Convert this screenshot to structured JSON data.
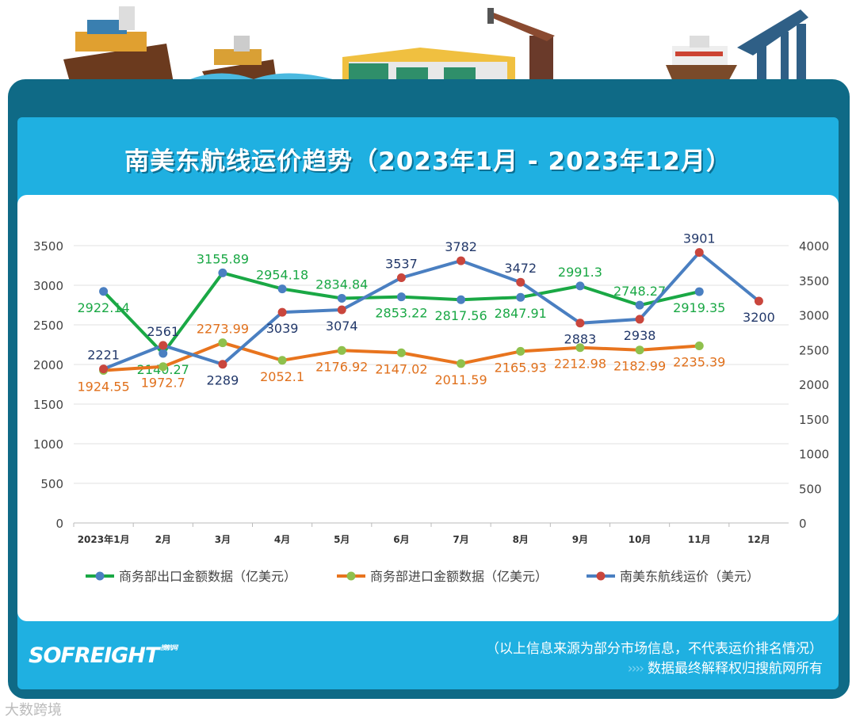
{
  "header": {
    "title": "南美东航线运价趋势（2023年1月 - 2023年12月）"
  },
  "footer": {
    "note": "（以上信息来源为部分市场信息，不代表运价排名情况）",
    "arrows": "››››",
    "rights": "数据最终解释权归搜航网所有",
    "logo": "SOFREIGHT",
    "logo_sub": "搜航网",
    "watermark": "大数跨境"
  },
  "chart_data": {
    "type": "line",
    "categories": [
      "2023年1月",
      "2月",
      "3月",
      "4月",
      "5月",
      "6月",
      "7月",
      "8月",
      "9月",
      "10月",
      "11月",
      "12月"
    ],
    "y_left": {
      "range": [
        0,
        3500
      ],
      "ticks": [
        0,
        500,
        1000,
        1500,
        2000,
        2500,
        3000,
        3500
      ]
    },
    "y_right": {
      "range": [
        0,
        4000
      ],
      "ticks": [
        0,
        500,
        1000,
        1500,
        2000,
        2500,
        3000,
        3500,
        4000
      ]
    },
    "grid": true,
    "legend": "bottom",
    "series": [
      {
        "name": "商务部出口金额数据（亿美元）",
        "axis": "left",
        "color": "#1aa845",
        "marker": "#4a7fc1",
        "label_color": "#1aa845",
        "values": [
          2922.14,
          2140.27,
          3155.89,
          2954.18,
          2834.84,
          2853.22,
          2817.56,
          2847.91,
          2991.3,
          2748.27,
          2919.35,
          null
        ]
      },
      {
        "name": "商务部进口金额数据（亿美元）",
        "axis": "left",
        "color": "#e8741e",
        "marker": "#8fc04c",
        "label_color": "#e0701c",
        "values": [
          1924.55,
          1972.7,
          2273.99,
          2052.1,
          2176.92,
          2147.02,
          2011.59,
          2165.93,
          2212.98,
          2182.99,
          2235.39,
          null
        ]
      },
      {
        "name": "南美东航线运价（美元）",
        "axis": "right",
        "color": "#4a7fc1",
        "marker": "#c9463d",
        "label_color": "#22386a",
        "values": [
          2221,
          2561,
          2289,
          3039,
          3074,
          3537,
          3782,
          3472,
          2883,
          2938,
          3901,
          3200
        ]
      }
    ]
  }
}
